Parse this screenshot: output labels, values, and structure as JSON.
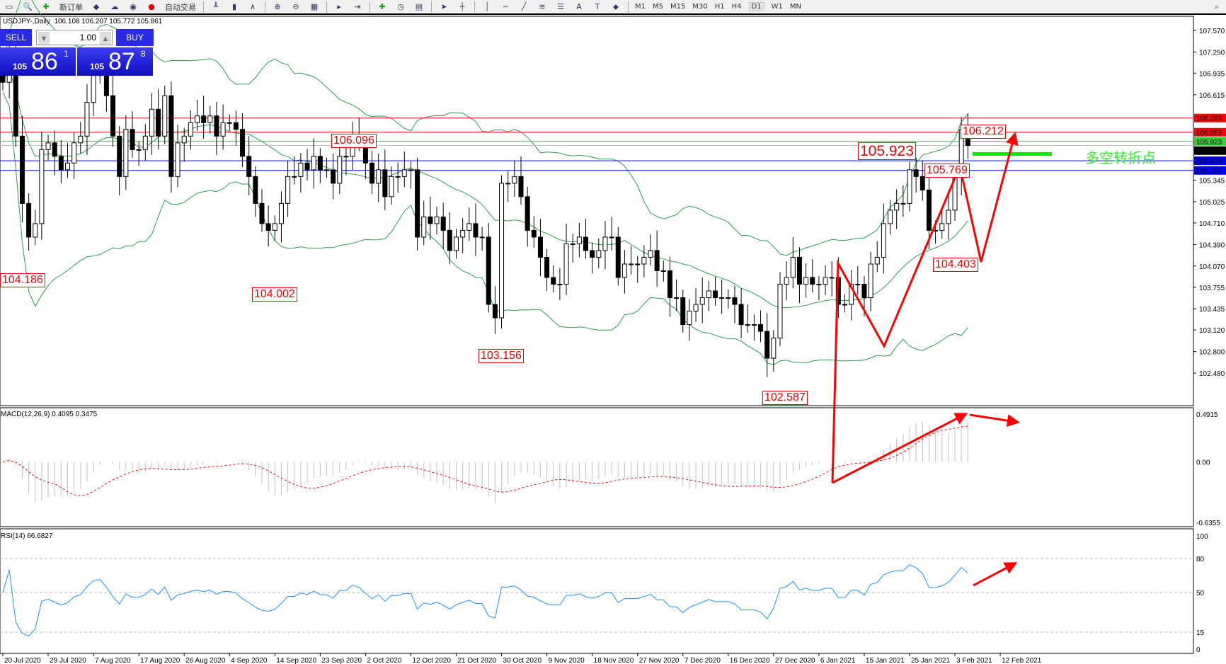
{
  "toolbar": {
    "new_order": "新订单",
    "auto_trade": "自动交易",
    "timeframes": [
      "M1",
      "M5",
      "M15",
      "M30",
      "H1",
      "H4",
      "D1",
      "W1",
      "MN"
    ],
    "active_timeframe": "D1",
    "icons": [
      "zoom-icon",
      "new-order-icon",
      "history-icon",
      "news-icon",
      "signal-icon",
      "autotrade-icon",
      "bar-chart-icon",
      "candle-chart-icon",
      "line-chart-icon",
      "zoom-in-icon",
      "zoom-out-icon",
      "tile-icon",
      "scroll-icon",
      "shift-icon",
      "indicator-icon",
      "clock-icon",
      "template-icon",
      "cursor-icon",
      "crosshair-icon",
      "vline-icon",
      "hline-icon",
      "trendline-icon",
      "fibo-icon",
      "fibo-fan-icon",
      "text-icon",
      "label-icon",
      "arrows-icon"
    ]
  },
  "header": {
    "symbol": "USDJPY-,Daily",
    "ohlc": "106.108 106.207 105.772 105.861"
  },
  "trade_panel": {
    "sell": "SELL",
    "buy": "BUY",
    "lot": "1.00",
    "bid_prefix": "105",
    "bid_big": "86",
    "bid_pip": "1",
    "ask_prefix": "105",
    "ask_big": "87",
    "ask_pip": "8"
  },
  "annotation_text": "多空转折点",
  "colors": {
    "up": "#ffffff",
    "down": "#000000",
    "bands": "#2e9e4a",
    "macd_signal": "#ff0000",
    "macd_hist": "#c0c0c0",
    "rsi": "#1e90ff",
    "arrow": "#ff0000",
    "green_bar": "#00ee00"
  },
  "chart_data": [
    {
      "type": "candlestick",
      "title": "USDJPY-,Daily",
      "ylim": [
        102.48,
        107.57
      ],
      "yticks": [
        "107.570",
        "107.250",
        "106.935",
        "106.615",
        "105.345",
        "105.025",
        "104.710",
        "104.390",
        "104.070",
        "103.755",
        "103.435",
        "103.120",
        "102.800",
        "102.480"
      ],
      "xticks": [
        "20 Jul 2020",
        "29 Jul 2020",
        "7 Aug 2020",
        "17 Aug 2020",
        "26 Aug 2020",
        "4 Sep 2020",
        "14 Sep 2020",
        "23 Sep 2020",
        "2 Oct 2020",
        "12 Oct 2020",
        "21 Oct 2020",
        "30 Oct 2020",
        "9 Nov 2020",
        "18 Nov 2020",
        "27 Nov 2020",
        "7 Dec 2020",
        "16 Dec 2020",
        "27 Dec 2020",
        "6 Jan 2021",
        "15 Jan 2021",
        "25 Jan 2021",
        "3 Feb 2021",
        "12 Feb 2021"
      ],
      "closes": [
        106.8,
        107.2,
        106.0,
        105.0,
        104.5,
        104.7,
        105.8,
        105.9,
        105.7,
        105.5,
        105.6,
        105.9,
        106.0,
        106.5,
        106.9,
        107.0,
        106.6,
        106.0,
        105.4,
        106.1,
        105.8,
        105.8,
        106.0,
        106.4,
        106.0,
        106.6,
        105.4,
        105.9,
        106.0,
        106.2,
        106.3,
        106.2,
        106.3,
        106.0,
        106.2,
        106.2,
        106.1,
        105.7,
        105.4,
        105.0,
        104.7,
        104.6,
        104.7,
        105.0,
        105.4,
        105.4,
        105.6,
        105.5,
        105.7,
        105.5,
        105.5,
        105.3,
        105.7,
        105.7,
        106.0,
        105.9,
        105.6,
        105.3,
        105.5,
        105.1,
        105.4,
        105.4,
        105.5,
        105.5,
        104.5,
        104.8,
        104.7,
        104.8,
        104.6,
        104.3,
        104.5,
        104.6,
        104.7,
        104.5,
        104.5,
        103.5,
        103.3,
        105.3,
        105.3,
        105.4,
        105.1,
        104.6,
        104.5,
        104.2,
        103.9,
        103.8,
        103.8,
        104.4,
        104.4,
        104.5,
        104.3,
        104.2,
        104.3,
        104.5,
        104.5,
        103.9,
        104.1,
        104.1,
        104.1,
        104.2,
        104.3,
        104.0,
        104.0,
        103.6,
        103.6,
        103.2,
        103.4,
        103.5,
        103.6,
        103.7,
        103.6,
        103.6,
        103.6,
        103.5,
        103.2,
        103.2,
        103.2,
        103.1,
        102.7,
        103.0,
        103.8,
        103.9,
        104.2,
        103.8,
        103.9,
        103.8,
        103.8,
        103.9,
        103.9,
        103.5,
        103.5,
        103.8,
        103.8,
        103.6,
        104.1,
        104.2,
        104.7,
        104.9,
        105.0,
        105.0,
        105.5,
        105.4,
        105.2,
        104.6,
        104.6,
        104.7,
        104.9,
        105.4,
        106.1,
        105.861
      ],
      "price_labels": [
        "104.186",
        "104.002",
        "106.096",
        "103.156",
        "102.587",
        "105.923",
        "105.769",
        "104.403",
        "106.212"
      ],
      "hlines": [
        {
          "value": "106.269",
          "color": "#ff0000"
        },
        {
          "value": "106.058",
          "color": "#ff0000"
        },
        {
          "value": "105.923",
          "color": "#33cc33"
        },
        {
          "value": "105.861",
          "color": "#000000"
        },
        {
          "value": "105.634",
          "color": "#0000ff"
        },
        {
          "value": "105.490",
          "color": "#0000ff"
        }
      ],
      "indicator": "Bollinger Bands"
    },
    {
      "type": "bar+line",
      "title": "MACD(12,26,9) 0.4095 0.3475",
      "ylim": [
        -0.6355,
        0.4915
      ],
      "yticks": [
        "0.4915",
        "0.00",
        "-0.6355"
      ]
    },
    {
      "type": "line",
      "title": "RSI(14) 66.6827",
      "ylim": [
        0,
        100
      ],
      "yticks": [
        "100",
        "80",
        "50",
        "15",
        "0"
      ],
      "levels": [
        80,
        50,
        15
      ]
    }
  ]
}
